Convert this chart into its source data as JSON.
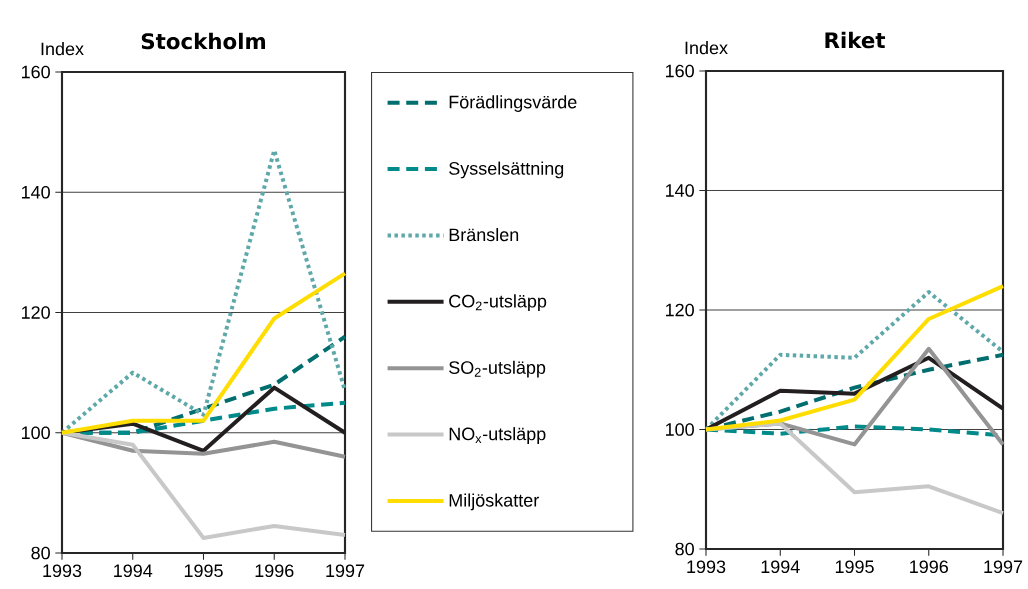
{
  "chart_data": [
    {
      "type": "line",
      "title": "Stockholm",
      "ylabel": "Index",
      "x": [
        1993,
        1994,
        1995,
        1996,
        1997
      ],
      "xlim": [
        1993,
        1997
      ],
      "ylim": [
        80,
        160
      ],
      "xticks": [
        1993,
        1994,
        1995,
        1996,
        1997
      ],
      "yticks": [
        80,
        100,
        120,
        140,
        160
      ],
      "grid": "y",
      "legend": "right",
      "marker": "none",
      "series": [
        {
          "name": "Förädlingsvärde",
          "color": "#006e6e",
          "line_style": "dashed",
          "values": [
            100,
            100,
            104,
            108,
            116
          ]
        },
        {
          "name": "Sysselsättning",
          "color": "#008a8a",
          "line_style": "dashed",
          "values": [
            100,
            100,
            102,
            104,
            105
          ]
        },
        {
          "name": "Bränslen",
          "color": "#5fa8aa",
          "line_style": "dotted",
          "values": [
            100,
            110,
            103,
            147,
            107
          ]
        },
        {
          "name": "CO$_{2}$-utsläpp",
          "color": "#231f20",
          "line_style": "solid",
          "values": [
            100,
            101.5,
            97,
            107.5,
            100
          ]
        },
        {
          "name": "SO$_{2}$-utsläpp",
          "color": "#949494",
          "line_style": "solid",
          "values": [
            100,
            97,
            96.5,
            98.5,
            96
          ]
        },
        {
          "name": "NO$_{x}$-utsläpp",
          "color": "#c8c8c8",
          "line_style": "solid",
          "values": [
            100,
            98,
            82.5,
            84.5,
            83
          ]
        },
        {
          "name": "Miljöskatter",
          "color": "#ffdd00",
          "line_style": "solid",
          "values": [
            100,
            102,
            102,
            119,
            126.5
          ]
        }
      ]
    },
    {
      "type": "line",
      "title": "Riket",
      "ylabel": "Index",
      "x": [
        1993,
        1994,
        1995,
        1996,
        1997
      ],
      "xlim": [
        1993,
        1997
      ],
      "ylim": [
        80,
        160
      ],
      "xticks": [
        1993,
        1994,
        1995,
        1996,
        1997
      ],
      "yticks": [
        80,
        100,
        120,
        140,
        160
      ],
      "grid": "y",
      "marker": "none",
      "series": [
        {
          "color": "#006e6e",
          "line_style": "dashed",
          "values": [
            100,
            103,
            107,
            110,
            112.5
          ]
        },
        {
          "color": "#008a8a",
          "line_style": "dashed",
          "values": [
            100,
            99.3,
            100.5,
            100,
            99
          ]
        },
        {
          "color": "#5fa8aa",
          "line_style": "dotted",
          "values": [
            100,
            112.5,
            112,
            123,
            113
          ]
        },
        {
          "color": "#231f20",
          "line_style": "solid",
          "values": [
            100,
            106.5,
            106,
            112,
            103.5
          ]
        },
        {
          "color": "#949494",
          "line_style": "solid",
          "values": [
            100,
            101,
            97.5,
            113.5,
            97.5
          ]
        },
        {
          "color": "#c8c8c8",
          "line_style": "solid",
          "values": [
            100,
            101,
            89.5,
            90.5,
            86
          ]
        },
        {
          "color": "#ffdd00",
          "line_style": "solid",
          "values": [
            100,
            101.5,
            105,
            118.5,
            124
          ]
        }
      ]
    }
  ]
}
